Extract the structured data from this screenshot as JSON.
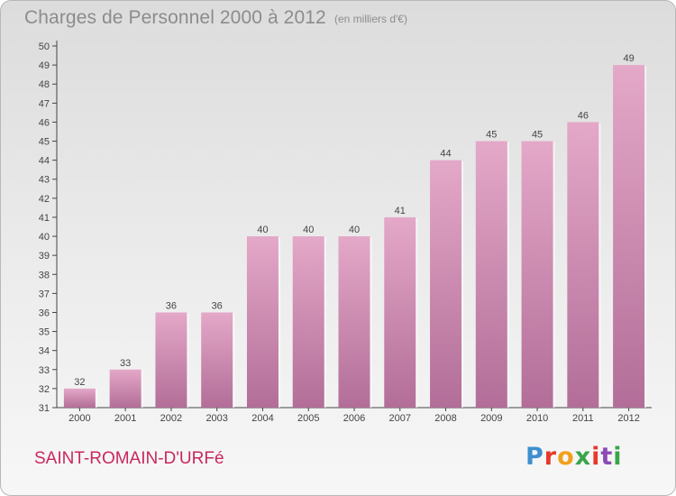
{
  "header": {
    "title": "Charges de Personnel 2000 à 2012",
    "subtitle": "(en milliers d'€)"
  },
  "footer": {
    "commune": "SAINT-ROMAIN-D'URFé",
    "logo": {
      "text": "Proxiti",
      "letter_colors": [
        "#3d8fd0",
        "#e8392b",
        "#f2a01c",
        "#3aa54a",
        "#e8392b",
        "#8b4bb5",
        "#3aa54a"
      ]
    }
  },
  "colors": {
    "bar_light": "#e4a8c8",
    "bar_dark": "#b26e98",
    "axis": "#444444",
    "text": "#444444"
  },
  "chart_data": {
    "type": "bar",
    "categories": [
      "2000",
      "2001",
      "2002",
      "2003",
      "2004",
      "2005",
      "2006",
      "2007",
      "2008",
      "2009",
      "2010",
      "2011",
      "2012"
    ],
    "values": [
      32,
      33,
      36,
      36,
      40,
      40,
      40,
      41,
      44,
      45,
      45,
      46,
      49
    ],
    "data_labels": [
      "32",
      "33",
      "36",
      "36",
      "40",
      "40",
      "40",
      "41",
      "44",
      "45",
      "45",
      "46",
      "49"
    ],
    "ylim": [
      31,
      50
    ],
    "yticks": [
      "31",
      "32",
      "33",
      "34",
      "35",
      "36",
      "37",
      "38",
      "39",
      "40",
      "41",
      "42",
      "43",
      "44",
      "45",
      "46",
      "47",
      "48",
      "49",
      "50"
    ],
    "grid": false,
    "legend": "none"
  }
}
